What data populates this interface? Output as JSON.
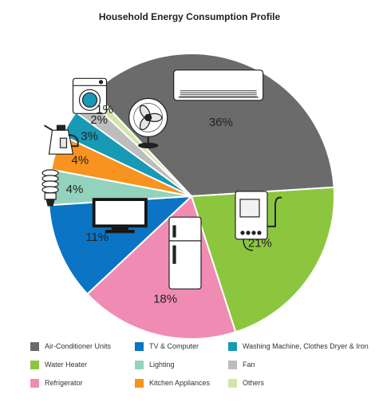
{
  "chart_data": {
    "type": "pie",
    "title": "Household Energy Consumption Profile",
    "slices": [
      {
        "label": "Air-Conditioner Units",
        "value": 36,
        "display": "36%",
        "color": "#6b6b6b",
        "icon": "air-conditioner-icon"
      },
      {
        "label": "Water Heater",
        "value": 21,
        "display": "21%",
        "color": "#8cc63f",
        "icon": "water-heater-icon"
      },
      {
        "label": "Refrigerator",
        "value": 18,
        "display": "18%",
        "color": "#f08cb4",
        "icon": "refrigerator-icon"
      },
      {
        "label": "TV & Computer",
        "value": 11,
        "display": "11%",
        "color": "#0b74c4",
        "icon": "tv-icon"
      },
      {
        "label": "Lighting",
        "value": 4,
        "display": "4%",
        "color": "#93d3be",
        "icon": "light-bulb-icon"
      },
      {
        "label": "Kitchen Appliances",
        "value": 4,
        "display": "4%",
        "color": "#f7931e",
        "icon": "kettle-icon"
      },
      {
        "label": "Washing Machine, Clothes Dryer & Iron",
        "value": 3,
        "display": "3%",
        "color": "#1899b5",
        "icon": "washing-machine-icon"
      },
      {
        "label": "Fan",
        "value": 2,
        "display": "2%",
        "color": "#bdbdbd",
        "icon": "fan-icon"
      },
      {
        "label": "Others",
        "value": 1,
        "display": "1%",
        "color": "#d2e6a8",
        "icon": ""
      }
    ],
    "legend_position": "bottom",
    "legend_order": [
      "Air-Conditioner Units",
      "TV & Computer",
      "Washing Machine, Clothes Dryer & Iron",
      "Water Heater",
      "Lighting",
      "Fan",
      "Refrigerator",
      "Kitchen Appliances",
      "Others"
    ]
  }
}
